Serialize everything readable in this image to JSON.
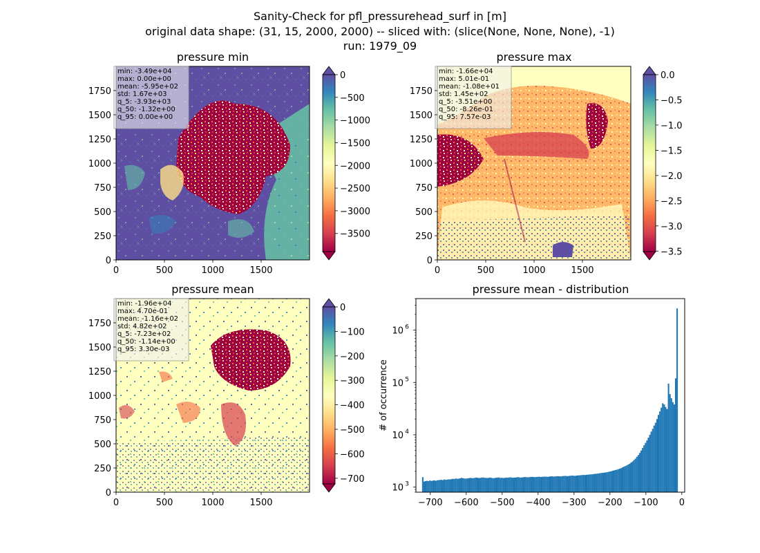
{
  "figure": {
    "suptitle_lines": [
      "Sanity-Check for pfl_pressurehead_surf in [m]",
      "original data shape: (31, 15, 2000, 2000) -- sliced with: (slice(None, None, None), -1)",
      "run: 1979_09"
    ]
  },
  "chart_data": [
    {
      "type": "heatmap",
      "title": "pressure min",
      "colormap": "Spectral",
      "xlim": [
        0,
        2000
      ],
      "ylim": [
        0,
        2000
      ],
      "xticks": [
        "0",
        "500",
        "1000",
        "1500"
      ],
      "yticks": [
        "0",
        "250",
        "500",
        "750",
        "1000",
        "1250",
        "1500",
        "1750"
      ],
      "colorbar": {
        "range": [
          -3900,
          0
        ],
        "extend": "both",
        "ticks": [
          "0",
          "−500",
          "−1000",
          "−1500",
          "−2000",
          "−2500",
          "−3000",
          "−3500"
        ]
      },
      "stats": [
        "min: -3.49e+04",
        "max: 0.00e+00",
        "mean: -5.95e+02",
        "std: 1.67e+03",
        "q_5: -3.93e+03",
        "q_50: -1.32e+00",
        "q_95: 0.00e+00"
      ]
    },
    {
      "type": "heatmap",
      "title": "pressure max",
      "colormap": "Spectral",
      "xlim": [
        0,
        2000
      ],
      "ylim": [
        0,
        2000
      ],
      "xticks": [
        "0",
        "500",
        "1000",
        "1500"
      ],
      "yticks": [
        "0",
        "250",
        "500",
        "750",
        "1000",
        "1250",
        "1500",
        "1750"
      ],
      "colorbar": {
        "range": [
          -3.51,
          0.0
        ],
        "extend": "both",
        "ticks": [
          "0.0",
          "−0.5",
          "−1.0",
          "−1.5",
          "−2.0",
          "−2.5",
          "−3.0",
          "−3.5"
        ]
      },
      "stats": [
        "min: -1.66e+04",
        "max: 5.01e-01",
        "mean: -1.08e+01",
        "std: 1.45e+02",
        "q_5: -3.51e+00",
        "q_50: -8.26e-01",
        "q_95: 7.57e-03"
      ]
    },
    {
      "type": "heatmap",
      "title": "pressure mean",
      "colormap": "Spectral",
      "xlim": [
        0,
        2000
      ],
      "ylim": [
        0,
        2000
      ],
      "xticks": [
        "0",
        "500",
        "1000",
        "1500"
      ],
      "yticks": [
        "0",
        "250",
        "500",
        "750",
        "1000",
        "1250",
        "1500",
        "1750"
      ],
      "colorbar": {
        "range": [
          -723,
          0
        ],
        "extend": "both",
        "ticks": [
          "0",
          "−100",
          "−200",
          "−300",
          "−400",
          "−500",
          "−600",
          "−700"
        ]
      },
      "stats": [
        "min: -1.96e+04",
        "max: 4.70e-01",
        "mean: -1.16e+02",
        "std: 4.82e+02",
        "q_5: -7.23e+02",
        "q_50: -1.14e+00",
        "q_95: 3.30e-03"
      ]
    },
    {
      "type": "bar",
      "title": "pressure mean - distribution",
      "ylabel": "# of occurrence",
      "xlabel": "",
      "yscale": "log",
      "xlim": [
        -740,
        8
      ],
      "ylim": [
        800,
        4000000
      ],
      "xticks": [
        "−700",
        "−600",
        "−500",
        "−400",
        "−300",
        "−200",
        "−100",
        "0"
      ],
      "yticks": [
        "10",
        "10",
        "10",
        "10"
      ],
      "yticks_exp": [
        "3",
        "4",
        "5",
        "6"
      ],
      "bar_color": "#1f77b4",
      "bins": {
        "start": -723,
        "width": 4
      },
      "counts": [
        1550,
        1280,
        1300,
        1320,
        1300,
        1340,
        1310,
        1330,
        1350,
        1320,
        1350,
        1360,
        1370,
        1380,
        1360,
        1400,
        1380,
        1390,
        1410,
        1400,
        1420,
        1440,
        1430,
        1460,
        1440,
        1450,
        1470,
        1500,
        1480,
        1460,
        1450,
        1470,
        1480,
        1500,
        1490,
        1480,
        1500,
        1520,
        1510,
        1490,
        1500,
        1520,
        1530,
        1510,
        1500,
        1490,
        1510,
        1520,
        1500,
        1480,
        1490,
        1510,
        1520,
        1530,
        1500,
        1510,
        1490,
        1500,
        1520,
        1510,
        1530,
        1540,
        1520,
        1510,
        1520,
        1530,
        1550,
        1540,
        1520,
        1530,
        1540,
        1560,
        1550,
        1540,
        1550,
        1560,
        1570,
        1560,
        1550,
        1560,
        1570,
        1580,
        1560,
        1570,
        1580,
        1590,
        1580,
        1570,
        1590,
        1600,
        1610,
        1590,
        1600,
        1610,
        1620,
        1610,
        1600,
        1620,
        1630,
        1640,
        1630,
        1620,
        1640,
        1650,
        1660,
        1650,
        1640,
        1660,
        1670,
        1680,
        1690,
        1700,
        1710,
        1700,
        1720,
        1730,
        1740,
        1750,
        1760,
        1780,
        1790,
        1800,
        1820,
        1840,
        1850,
        1870,
        1890,
        1900,
        1920,
        1950,
        1980,
        2000,
        2050,
        2080,
        2120,
        2150,
        2200,
        2250,
        2300,
        2380,
        2450,
        2520,
        2600,
        2700,
        2800,
        2950,
        3100,
        3300,
        3500,
        3800,
        4100,
        4500,
        5000,
        5600,
        6300,
        7000,
        7800,
        8800,
        10000,
        11500,
        13000,
        15000,
        17000,
        20000,
        24000,
        28000,
        33000,
        40000,
        38000,
        34000,
        31000,
        95000,
        60000,
        50000,
        42000,
        38000,
        120000,
        2600000
      ]
    }
  ]
}
